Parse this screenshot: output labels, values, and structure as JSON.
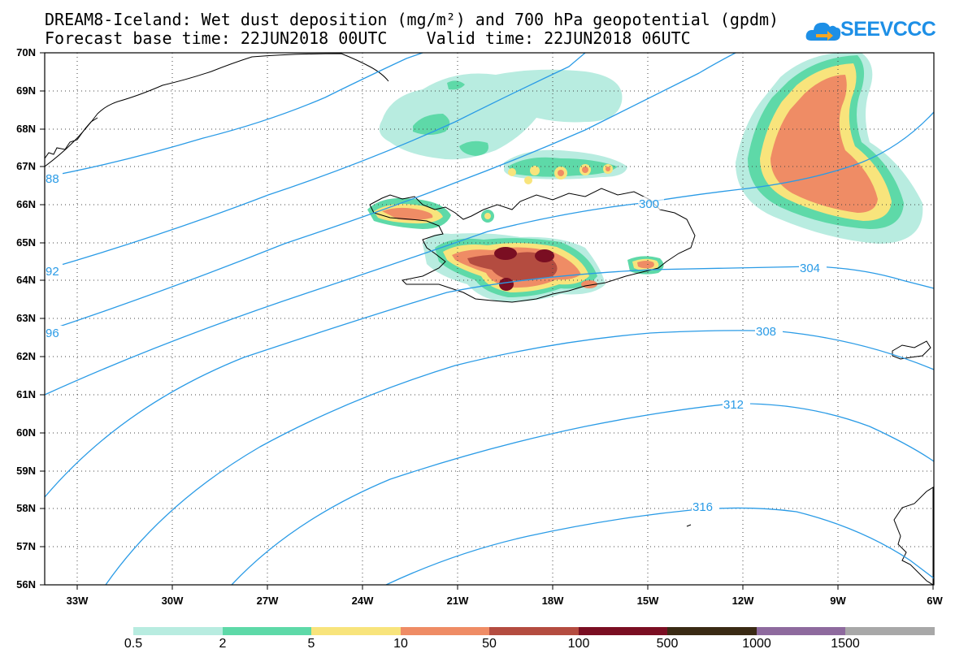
{
  "header": {
    "title_line1": "DREAM8-Iceland: Wet dust deposition (mg/m²) and 700 hPa geopotential (gpdm)",
    "title_line2": "Forecast base time: 22JUN2018 00UTC    Valid time: 22JUN2018 06UTC",
    "logo_text": "SEEVCCC"
  },
  "map": {
    "lat_labels": [
      "70N",
      "69N",
      "68N",
      "67N",
      "66N",
      "65N",
      "64N",
      "63N",
      "62N",
      "61N",
      "60N",
      "59N",
      "58N",
      "57N",
      "56N"
    ],
    "lon_labels": [
      "33W",
      "30W",
      "27W",
      "24W",
      "21W",
      "18W",
      "15W",
      "12W",
      "9W",
      "6W"
    ],
    "contour_labels": [
      "88",
      "92",
      "96",
      "300",
      "304",
      "308",
      "312",
      "316"
    ]
  },
  "legend": {
    "labels": [
      "0.5",
      "2",
      "5",
      "10",
      "50",
      "100",
      "500",
      "1000",
      "1500"
    ],
    "colors": [
      "#b8ece0",
      "#5ed9a8",
      "#f8e47c",
      "#ef8c65",
      "#b44c40",
      "#7a0e22",
      "#3a2a14",
      "#8e6a9e",
      "#a8a8a8"
    ]
  },
  "colors": {
    "contour": "#2a9be6",
    "coast": "#000000"
  }
}
